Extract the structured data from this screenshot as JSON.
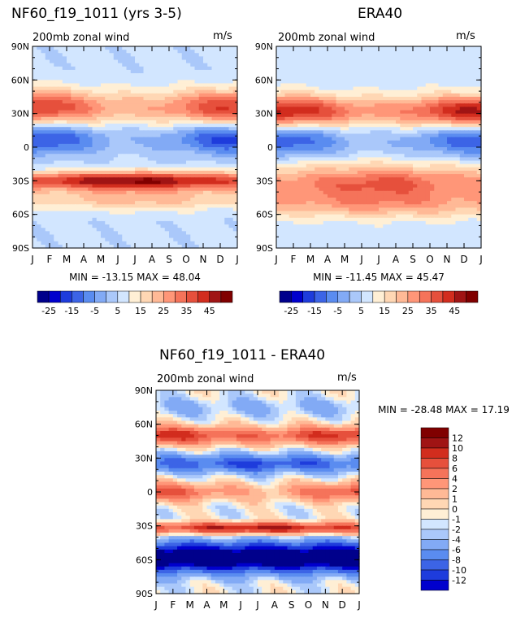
{
  "chart_data": [
    {
      "type": "heatmap",
      "title": "NF60_f19_1011 (yrs 3-5)",
      "subtitle": "200mb zonal wind",
      "units": "m/s",
      "x_ticks": [
        "J",
        "F",
        "M",
        "A",
        "M",
        "J",
        "J",
        "A",
        "S",
        "O",
        "N",
        "D",
        "J"
      ],
      "y_ticks": [
        "90N",
        "60N",
        "30N",
        "0",
        "30S",
        "60S",
        "90S"
      ],
      "ylim": [
        -90,
        90
      ],
      "min_text": "MIN = -13.15 MAX =  48.04",
      "min": -13.15,
      "max": 48.04,
      "colorbar_labels": [
        "-25",
        "-15",
        "-5",
        "5",
        "15",
        "25",
        "35",
        "45"
      ],
      "levels": [
        -30,
        -25,
        -20,
        -15,
        -10,
        -5,
        0,
        5,
        10,
        15,
        20,
        25,
        30,
        35,
        40,
        45,
        50
      ],
      "features": [
        {
          "lat": 35,
          "amp": 26,
          "width": 16,
          "season": 9
        },
        {
          "lat": -30,
          "amp": 38,
          "width": 8,
          "season": 6
        },
        {
          "lat": -46,
          "amp": 14,
          "width": 10,
          "season": 3
        },
        {
          "lat": 8,
          "amp": -15,
          "width": 14,
          "season": -9
        }
      ],
      "background": 6
    },
    {
      "type": "heatmap",
      "title": "ERA40",
      "subtitle": "200mb zonal wind",
      "units": "m/s",
      "x_ticks": [
        "J",
        "F",
        "M",
        "A",
        "M",
        "J",
        "J",
        "A",
        "S",
        "O",
        "N",
        "D",
        "J"
      ],
      "y_ticks": [
        "90N",
        "60N",
        "30N",
        "0",
        "30S",
        "60S",
        "90S"
      ],
      "ylim": [
        -90,
        90
      ],
      "min_text": "MIN = -11.45 MAX =  45.47",
      "min": -11.45,
      "max": 45.47,
      "colorbar_labels": [
        "-25",
        "-15",
        "-5",
        "5",
        "15",
        "25",
        "35",
        "45"
      ],
      "levels": [
        -30,
        -25,
        -20,
        -15,
        -10,
        -5,
        0,
        5,
        10,
        15,
        20,
        25,
        30,
        35,
        40,
        45,
        50
      ],
      "features": [
        {
          "lat": 32,
          "amp": 30,
          "width": 14,
          "season": 10
        },
        {
          "lat": -32,
          "amp": 24,
          "width": 16,
          "season": 5
        },
        {
          "lat": -52,
          "amp": 14,
          "width": 12,
          "season": 2
        },
        {
          "lat": 6,
          "amp": -14,
          "width": 14,
          "season": -8
        }
      ],
      "background": 7
    },
    {
      "type": "heatmap",
      "title": "NF60_f19_1011 - ERA40",
      "subtitle": "200mb zonal wind",
      "units": "m/s",
      "x_ticks": [
        "J",
        "F",
        "M",
        "A",
        "M",
        "J",
        "J",
        "A",
        "S",
        "O",
        "N",
        "D",
        "J"
      ],
      "y_ticks": [
        "90N",
        "60N",
        "30N",
        "0",
        "30S",
        "60S",
        "90S"
      ],
      "ylim": [
        -90,
        90
      ],
      "min_text": "MIN = -28.48 MAX =  17.19",
      "min": -28.48,
      "max": 17.19,
      "colorbar_labels": [
        "12",
        "10",
        "8",
        "6",
        "4",
        "2",
        "1",
        "0",
        "-1",
        "-2",
        "-4",
        "-6",
        "-8",
        "-10",
        "-12"
      ],
      "levels": [
        -14,
        -12,
        -10,
        -8,
        -6,
        -4,
        -2,
        -1,
        0,
        1,
        2,
        4,
        6,
        8,
        10,
        12,
        14
      ],
      "features": [
        {
          "lat": 50,
          "amp": 9,
          "width": 8,
          "season": 2
        },
        {
          "lat": 25,
          "amp": -7,
          "width": 8,
          "season": 1
        },
        {
          "lat": 0,
          "amp": 6,
          "width": 8,
          "season": 3
        },
        {
          "lat": -32,
          "amp": 11,
          "width": 5,
          "season": 2
        },
        {
          "lat": -58,
          "amp": -16,
          "width": 13,
          "season": 0
        },
        {
          "lat": 75,
          "amp": -2,
          "width": 8,
          "season": 0
        }
      ],
      "background": 0
    }
  ],
  "palette": [
    "#00008b",
    "#0000cd",
    "#1e3cdc",
    "#3c64e6",
    "#5a8cf0",
    "#82aaf5",
    "#aac8fa",
    "#d2e6ff",
    "#ffefd5",
    "#ffd7b4",
    "#ffb996",
    "#ff9678",
    "#f5735a",
    "#e6503c",
    "#d22d1e",
    "#a01414",
    "#800000"
  ]
}
